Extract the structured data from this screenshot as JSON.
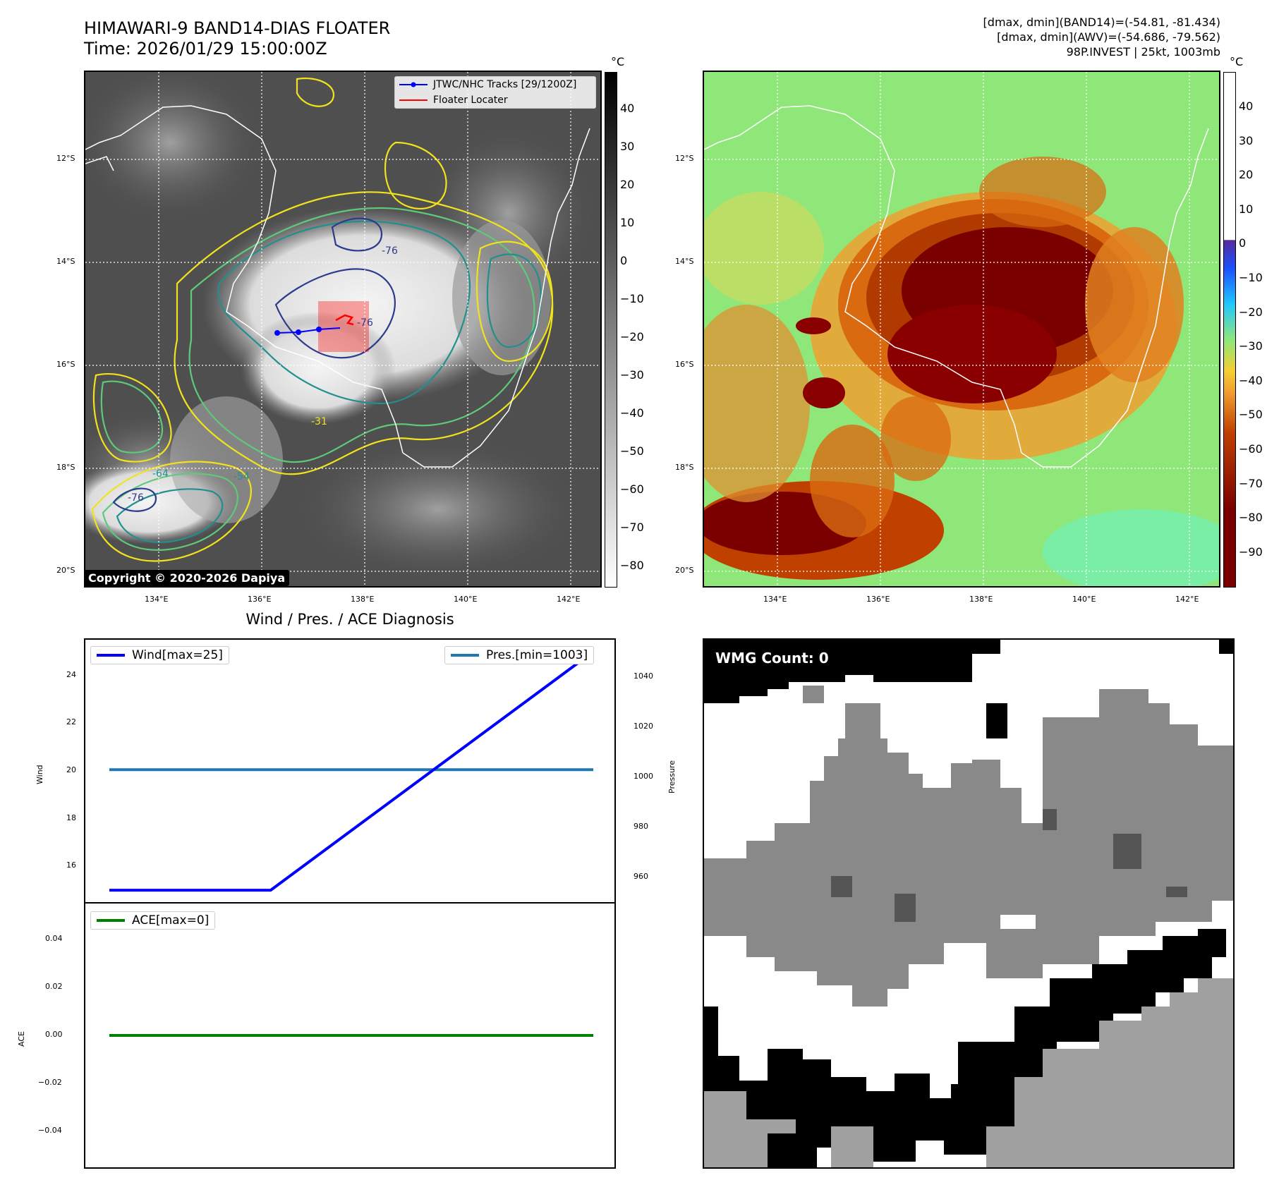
{
  "header": {
    "title_line1": "HIMAWARI-9 BAND14-DIAS FLOATER",
    "title_line2": "Time: 2026/01/29 15:00:00Z",
    "info_line1": "[dmax, dmin](BAND14)=(-54.81, -81.434)",
    "info_line2": "[dmax, dmin](AWV)=(-54.686, -79.562)",
    "info_line3": "98P.INVEST | 25kt, 1003mb"
  },
  "maps": {
    "lat_labels": [
      "12°S",
      "14°S",
      "16°S",
      "18°S",
      "20°S"
    ],
    "lon_labels": [
      "134°E",
      "136°E",
      "138°E",
      "140°E",
      "142°E"
    ],
    "unit": "°C",
    "legend_track": "JTWC/NHC Tracks [29/1200Z]",
    "legend_floater": "Floater Locater",
    "copyright": "Copyright © 2020-2026 Dapiya",
    "contour_labels": [
      "-76",
      "-64",
      "-54",
      "-31",
      "-76",
      "-76"
    ],
    "colorbar_left_ticks": [
      "40",
      "30",
      "20",
      "10",
      "0",
      "−10",
      "−20",
      "−30",
      "−40",
      "−50",
      "−60",
      "−70",
      "−80"
    ],
    "colorbar_right_ticks": [
      "40",
      "30",
      "20",
      "10",
      "0",
      "−10",
      "−20",
      "−30",
      "−40",
      "−50",
      "−60",
      "−70",
      "−80",
      "−90"
    ],
    "colors": {
      "contour_yellow": "#f2e21d",
      "contour_green": "#5fc97a",
      "contour_teal": "#21908c",
      "contour_navy": "#2c3b8c",
      "track": "#0000ff",
      "floater": "#ff0000"
    }
  },
  "diagnosis": {
    "title": "Wind / Pres. / ACE Diagnosis",
    "wind_legend": "Wind[max=25]",
    "pres_legend": "Pres.[min=1003]",
    "ace_legend": "ACE[max=0]",
    "wind_ylabel": "Wind",
    "pres_ylabel": "Pressure",
    "ace_ylabel": "ACE",
    "wind_ticks": [
      "24",
      "22",
      "20",
      "18",
      "16"
    ],
    "pres_ticks": [
      "1040",
      "1020",
      "1000",
      "980",
      "960"
    ],
    "ace_ticks": [
      "0.04",
      "0.02",
      "0.00",
      "−0.02",
      "−0.04"
    ]
  },
  "wmg": {
    "label": "WMG Count: 0"
  },
  "chart_data": [
    {
      "type": "line",
      "title": "Wind / Pres. / ACE Diagnosis",
      "ylabel": "Wind",
      "ylim": [
        14.5,
        25.5
      ],
      "x": [
        0,
        1,
        2,
        3
      ],
      "series": [
        {
          "name": "Wind[max=25]",
          "color": "#0000ff",
          "values": [
            15,
            15,
            20,
            25
          ]
        }
      ]
    },
    {
      "type": "line",
      "ylabel": "Pressure",
      "ylim": [
        950,
        1055
      ],
      "x": [
        0,
        1,
        2,
        3
      ],
      "series": [
        {
          "name": "Pres.[min=1003]",
          "color": "#1f77b4",
          "values": [
            1003,
            1003,
            1003,
            1003
          ]
        }
      ]
    },
    {
      "type": "line",
      "ylabel": "ACE",
      "ylim": [
        -0.055,
        0.055
      ],
      "x": [
        0,
        1,
        2,
        3
      ],
      "series": [
        {
          "name": "ACE[max=0]",
          "color": "#008000",
          "values": [
            0,
            0,
            0,
            0
          ]
        }
      ]
    }
  ]
}
